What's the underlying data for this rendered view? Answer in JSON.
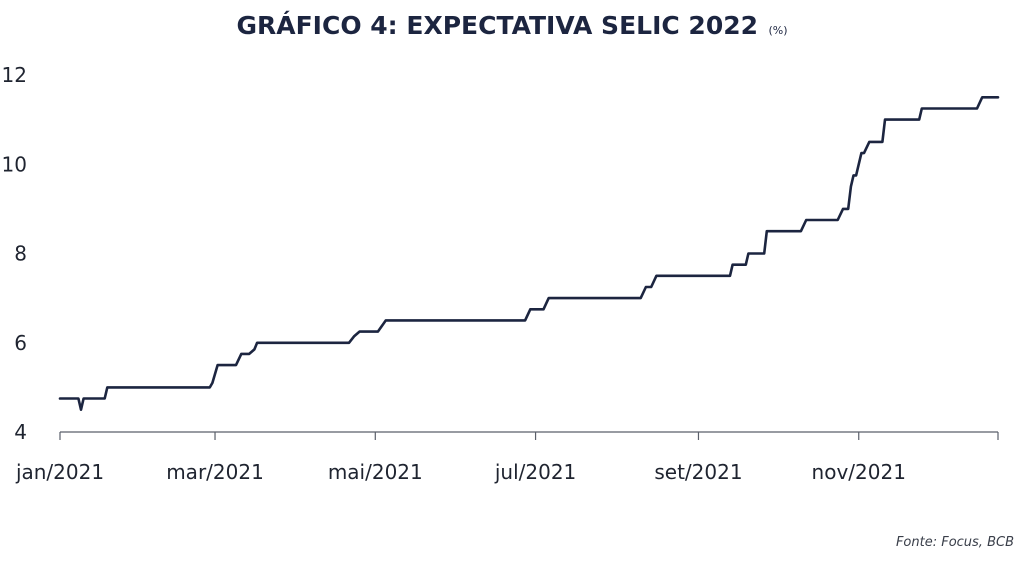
{
  "chart_data": {
    "type": "line",
    "title": "GRÁFICO 4: EXPECTATIVA SELIC 2022",
    "title_unit": "(%)",
    "source": "Fonte: Focus, BCB",
    "xlabel": "",
    "ylabel": "",
    "ylim": [
      4,
      12
    ],
    "yticks": [
      4,
      6,
      8,
      10,
      12
    ],
    "xlim": [
      "2021-01-01",
      "2021-12-24"
    ],
    "xticks": [
      {
        "label": "jan/2021",
        "date": "2021-01-01"
      },
      {
        "label": "mar/2021",
        "date": "2021-03-01"
      },
      {
        "label": "mai/2021",
        "date": "2021-05-01"
      },
      {
        "label": "jul/2021",
        "date": "2021-07-01"
      },
      {
        "label": "set/2021",
        "date": "2021-09-01"
      },
      {
        "label": "nov/2021",
        "date": "2021-11-01"
      }
    ],
    "grid": false,
    "line_color": "#1c2540",
    "series": [
      {
        "x": [
          "2021-01-01",
          "2021-01-08",
          "2021-01-09",
          "2021-01-10",
          "2021-01-18",
          "2021-01-19",
          "2021-02-27",
          "2021-02-28",
          "2021-03-02",
          "2021-03-09",
          "2021-03-11",
          "2021-03-14",
          "2021-03-16",
          "2021-03-17",
          "2021-04-21",
          "2021-04-23",
          "2021-04-25",
          "2021-05-02",
          "2021-05-05",
          "2021-06-27",
          "2021-06-29",
          "2021-07-04",
          "2021-07-06",
          "2021-08-10",
          "2021-08-12",
          "2021-08-14",
          "2021-08-16",
          "2021-09-13",
          "2021-09-14",
          "2021-09-19",
          "2021-09-20",
          "2021-09-26",
          "2021-09-27",
          "2021-10-10",
          "2021-10-12",
          "2021-10-24",
          "2021-10-26",
          "2021-10-28",
          "2021-10-29",
          "2021-10-30",
          "2021-10-31",
          "2021-11-02",
          "2021-11-03",
          "2021-11-05",
          "2021-11-06",
          "2021-11-10",
          "2021-11-11",
          "2021-11-24",
          "2021-11-25",
          "2021-12-16",
          "2021-12-18",
          "2021-12-24"
        ],
        "y": [
          4.75,
          4.75,
          4.5,
          4.75,
          4.75,
          5.0,
          5.0,
          5.1,
          5.5,
          5.5,
          5.75,
          5.75,
          5.85,
          6.0,
          6.0,
          6.15,
          6.25,
          6.25,
          6.5,
          6.5,
          6.75,
          6.75,
          7.0,
          7.0,
          7.25,
          7.25,
          7.5,
          7.5,
          7.75,
          7.75,
          8.0,
          8.0,
          8.5,
          8.5,
          8.75,
          8.75,
          9.0,
          9.0,
          9.5,
          9.75,
          9.75,
          10.25,
          10.25,
          10.5,
          10.5,
          10.5,
          11.0,
          11.0,
          11.25,
          11.25,
          11.5,
          11.5
        ]
      }
    ]
  }
}
